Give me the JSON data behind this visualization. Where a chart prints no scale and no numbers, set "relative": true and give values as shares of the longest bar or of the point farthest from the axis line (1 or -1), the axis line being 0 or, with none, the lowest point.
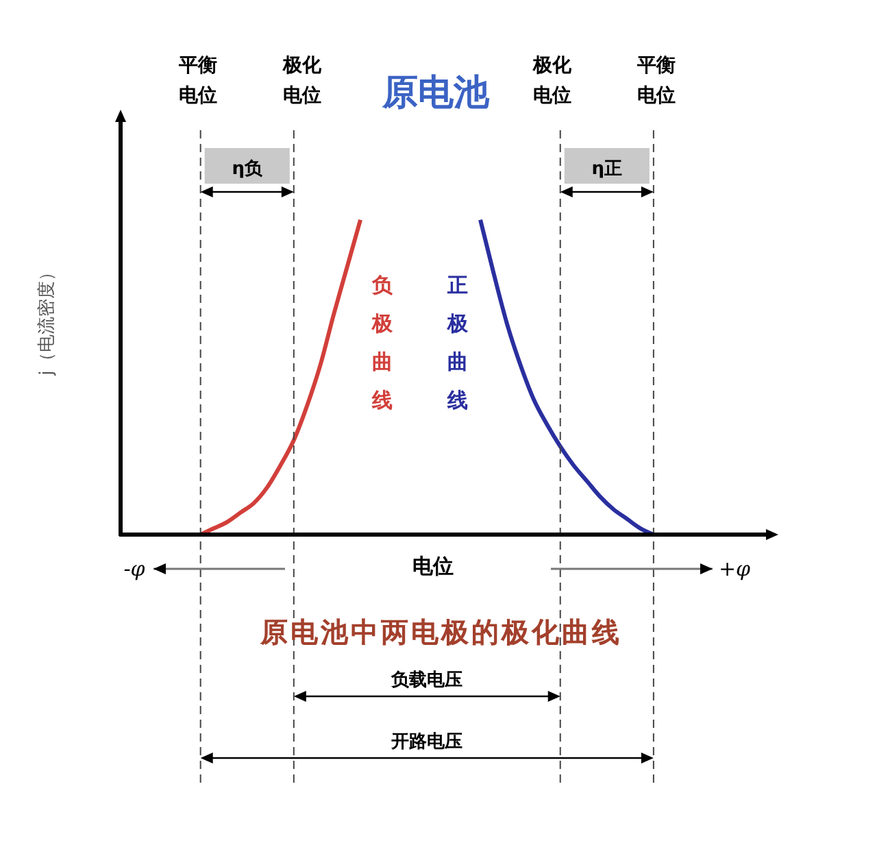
{
  "chart_data": {
    "type": "line",
    "title": "原电池",
    "xlabel": "电位",
    "ylabel": "j（电流密度）",
    "relative": true,
    "legend": false,
    "grid": "x",
    "marker": "none",
    "line_style": "solid",
    "categories": [
      null,
      null,
      null,
      null,
      null,
      null,
      null,
      null,
      null,
      null,
      null,
      null,
      null,
      null,
      null,
      null,
      null,
      null,
      null,
      null,
      null,
      null,
      null,
      null,
      null,
      null,
      null,
      null,
      null,
      null,
      null,
      null,
      null,
      null,
      null,
      null,
      null,
      null,
      null,
      null,
      null,
      null,
      null,
      null,
      null,
      null,
      null,
      null
    ],
    "series": [
      {
        "name": "负极曲线",
        "color": "#d23f3a",
        "values": [
          null,
          null,
          null,
          null,
          null,
          null,
          0,
          0.02,
          0.04,
          0.07,
          0.1,
          0.15,
          0.22,
          0.3,
          0.41,
          0.54,
          0.7,
          0.85,
          1,
          null,
          null,
          null,
          null,
          null,
          null,
          null,
          null,
          null,
          null,
          null,
          null,
          null,
          null,
          null,
          null,
          null,
          null,
          null,
          null,
          null,
          null,
          null,
          null,
          null,
          null,
          null,
          null,
          null
        ]
      },
      {
        "name": "正极曲线",
        "color": "#2a2f9f",
        "values": [
          null,
          null,
          null,
          null,
          null,
          null,
          null,
          null,
          null,
          null,
          null,
          null,
          null,
          null,
          null,
          null,
          null,
          null,
          null,
          null,
          null,
          null,
          null,
          null,
          null,
          null,
          null,
          1,
          0.83,
          0.67,
          0.54,
          0.43,
          0.35,
          0.28,
          0.22,
          0.17,
          0.12,
          0.08,
          0.05,
          0.02,
          0,
          null,
          null,
          null,
          null,
          null,
          null,
          null
        ]
      }
    ],
    "annotations": [
      "平衡电位",
      "极化电位",
      "极化电位",
      "平衡电位",
      "η负",
      "η正",
      "负载电压",
      "开路电压",
      "-φ",
      "+φ",
      "原电池中两电极的极化曲线"
    ]
  }
}
